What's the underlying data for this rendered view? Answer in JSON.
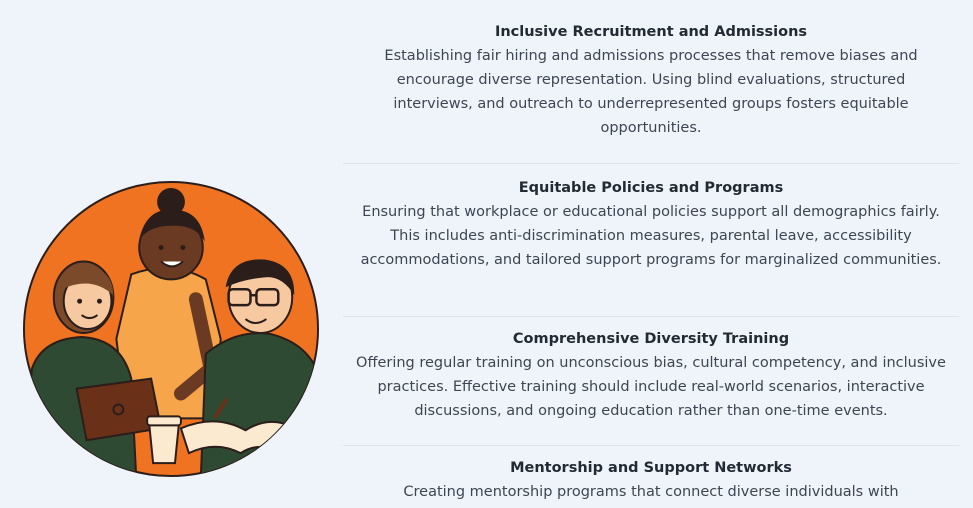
{
  "illustration": {
    "description_icon": "students-studying-illustration",
    "colors": {
      "background": "#ef7321",
      "dark_green": "#2f4a32",
      "skin_light": "#f6c9a0",
      "skin_dark": "#6b3a22",
      "hair_dark": "#2a1d1a",
      "hair_brown": "#7a4a2a",
      "shirt_orange": "#f7a54b",
      "laptop": "#6a3118"
    }
  },
  "sections": [
    {
      "title": "Inclusive Recruitment and Admissions",
      "text": "Establishing fair hiring and admissions processes that remove biases and encourage diverse representation. Using blind evaluations, structured interviews, and outreach to underrepresented groups fosters equitable opportunities."
    },
    {
      "title": "Equitable Policies and Programs",
      "text": "Ensuring that workplace or educational policies support all demographics fairly. This includes anti-discrimination measures, parental leave, accessibility accommodations, and tailored support programs for marginalized communities."
    },
    {
      "title": "Comprehensive Diversity Training",
      "text": "Offering regular training on unconscious bias, cultural competency, and inclusive practices. Effective training should include real-world scenarios, interactive discussions, and ongoing education rather than one-time events."
    },
    {
      "title": "Mentorship and Support Networks",
      "text": "Creating mentorship programs that connect diverse individuals with"
    }
  ]
}
